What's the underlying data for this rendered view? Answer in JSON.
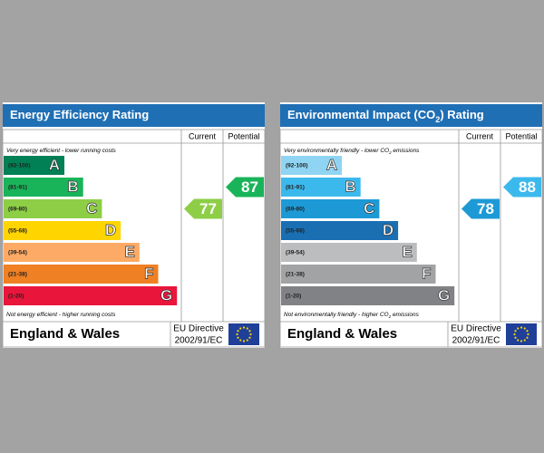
{
  "panels": [
    {
      "title": [
        "Energy Efficiency Rating"
      ],
      "headers": [
        "Current",
        "Potential"
      ],
      "top_note": [
        "Very energy efficient - lower running costs"
      ],
      "bands": [
        {
          "range": "(92-100)",
          "letter": "A",
          "color": "#008054"
        },
        {
          "range": "(81-91)",
          "letter": "B",
          "color": "#19b459"
        },
        {
          "range": "(69-80)",
          "letter": "C",
          "color": "#8dce46"
        },
        {
          "range": "(55-68)",
          "letter": "D",
          "color": "#ffd500"
        },
        {
          "range": "(39-54)",
          "letter": "E",
          "color": "#fcaa65"
        },
        {
          "range": "(21-38)",
          "letter": "F",
          "color": "#ef8023"
        },
        {
          "range": "(1-20)",
          "letter": "G",
          "color": "#e9153b"
        }
      ],
      "bottom_note": [
        "Not energy efficient - higher running costs"
      ],
      "current": 77,
      "potential": 87,
      "region": "England & Wales",
      "directive": [
        "EU Directive",
        "2002/91/EC"
      ]
    },
    {
      "title": [
        "Environmental Impact (CO",
        "2",
        ") Rating"
      ],
      "headers": [
        "Current",
        "Potential"
      ],
      "top_note": [
        "Very environmentally friendly - lower CO",
        "2",
        " emissions"
      ],
      "bands": [
        {
          "range": "(92-100)",
          "letter": "A",
          "color": "#8fd5f3"
        },
        {
          "range": "(81-91)",
          "letter": "B",
          "color": "#3cb9ec"
        },
        {
          "range": "(69-80)",
          "letter": "C",
          "color": "#1d9ad6"
        },
        {
          "range": "(55-68)",
          "letter": "D",
          "color": "#1a6fb3"
        },
        {
          "range": "(39-54)",
          "letter": "E",
          "color": "#bbbdbf"
        },
        {
          "range": "(21-38)",
          "letter": "F",
          "color": "#a1a3a5"
        },
        {
          "range": "(1-20)",
          "letter": "G",
          "color": "#808285"
        }
      ],
      "bottom_note": [
        "Not environmentally friendly - higher CO",
        "2",
        " emissions"
      ],
      "current": 78,
      "potential": 88,
      "region": "England & Wales",
      "directive": [
        "EU Directive",
        "2002/91/EC"
      ]
    }
  ]
}
